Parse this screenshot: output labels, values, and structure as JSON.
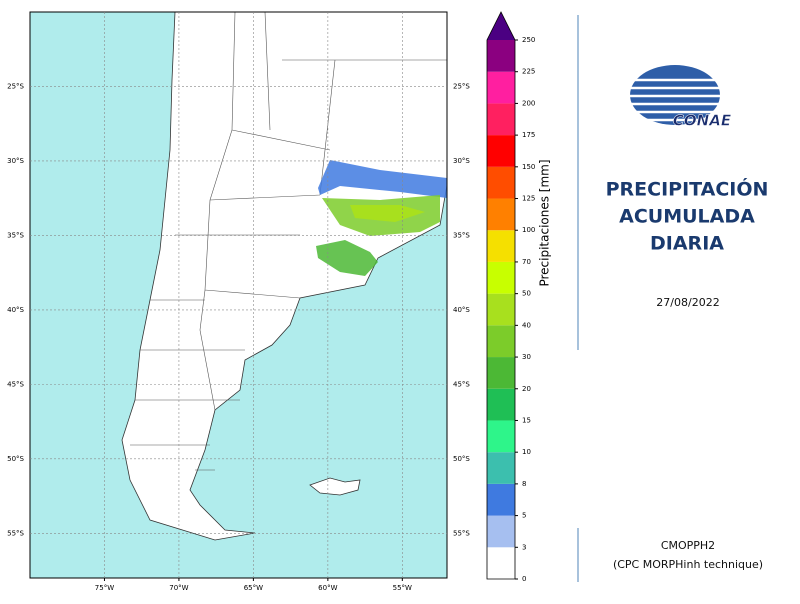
{
  "map": {
    "xlim": [
      -80,
      -52
    ],
    "ylim": [
      -20,
      -58
    ],
    "xticks": [
      {
        "value": -75,
        "label": "75°W"
      },
      {
        "value": -70,
        "label": "70°W"
      },
      {
        "value": -65,
        "label": "65°W"
      },
      {
        "value": -60,
        "label": "60°W"
      },
      {
        "value": -55,
        "label": "55°W"
      }
    ],
    "yticks": [
      {
        "value": -25,
        "label": "25°S"
      },
      {
        "value": -30,
        "label": "30°S"
      },
      {
        "value": -35,
        "label": "35°S"
      },
      {
        "value": -40,
        "label": "40°S"
      },
      {
        "value": -45,
        "label": "45°S"
      },
      {
        "value": -50,
        "label": "50°S"
      },
      {
        "value": -55,
        "label": "55°S"
      }
    ],
    "grid": true
  },
  "colorbar": {
    "label": "Precipitaciones [mm]",
    "ticks": [
      0,
      3,
      5,
      8,
      10,
      15,
      20,
      30,
      40,
      50,
      70,
      100,
      125,
      150,
      175,
      200,
      225,
      250
    ],
    "colors": [
      "#ffffff",
      "#a6bff0",
      "#3f7ae0",
      "#3cbfae",
      "#2ef58a",
      "#1fbf55",
      "#4cb835",
      "#7ccc2a",
      "#a8e01e",
      "#c8ff00",
      "#f5e000",
      "#ff8000",
      "#ff4d00",
      "#ff0000",
      "#ff2060",
      "#ff1fa0",
      "#8b0080"
    ],
    "extend_color": "#4b0082"
  },
  "panel": {
    "logo": "CONAE",
    "title": [
      "PRECIPITACIÓN",
      "ACUMULADA",
      "DIARIA"
    ],
    "date": "27/08/2022",
    "product": "CMOPPH2",
    "technique": "(CPC MORPHinh technique)"
  }
}
